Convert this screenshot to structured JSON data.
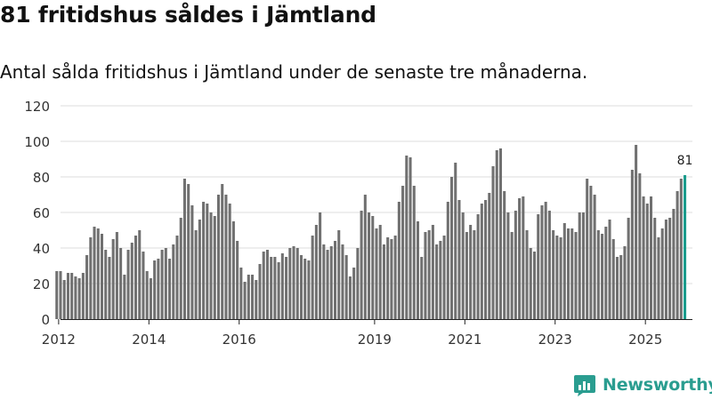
{
  "title": "81 fritidshus såldes i Jämtland",
  "subtitle": "Antal sålda fritidshus i Jämtland under de senaste tre månaderna.",
  "brand": {
    "name": "Newsworthy",
    "icon": "newsworthy-logo-icon"
  },
  "colors": {
    "bar": "#707070",
    "highlight": "#1a9c8c",
    "grid": "#dddddd",
    "axis": "#222222",
    "brand": "#2a9d90"
  },
  "chart_data": {
    "type": "bar",
    "title": "81 fritidshus såldes i Jämtland",
    "xlabel": "",
    "ylabel": "",
    "ylim": [
      0,
      120
    ],
    "yticks": [
      0,
      20,
      40,
      60,
      80,
      100,
      120
    ],
    "grid": true,
    "x_start": "2012-01",
    "x_end": "2026-01",
    "xticks": [
      {
        "label": "2012",
        "date": "2012-01"
      },
      {
        "label": "2014",
        "date": "2014-01"
      },
      {
        "label": "2016",
        "date": "2016-01"
      },
      {
        "label": "2019",
        "date": "2019-01"
      },
      {
        "label": "2021",
        "date": "2021-01"
      },
      {
        "label": "2023",
        "date": "2023-01"
      },
      {
        "label": "2025",
        "date": "2025-01"
      }
    ],
    "highlight_label": "81",
    "series": [
      {
        "name": "Antal sålda fritidshus",
        "start": "2011-12",
        "values": [
          27,
          27,
          22,
          26,
          26,
          24,
          23,
          26,
          36,
          46,
          52,
          51,
          48,
          39,
          35,
          45,
          49,
          40,
          25,
          39,
          43,
          47,
          50,
          38,
          27,
          23,
          33,
          34,
          39,
          40,
          34,
          42,
          47,
          57,
          79,
          76,
          64,
          50,
          56,
          66,
          65,
          60,
          58,
          70,
          76,
          70,
          65,
          55,
          44,
          29,
          21,
          25,
          25,
          22,
          31,
          38,
          39,
          35,
          35,
          32,
          37,
          35,
          40,
          41,
          40,
          36,
          34,
          33,
          47,
          53,
          60,
          42,
          39,
          41,
          44,
          50,
          42,
          36,
          24,
          29,
          40,
          61,
          70,
          60,
          58,
          51,
          53,
          42,
          46,
          45,
          47,
          66,
          75,
          92,
          91,
          75,
          55,
          35,
          49,
          50,
          53,
          42,
          44,
          47,
          66,
          80,
          88,
          67,
          60,
          49,
          53,
          50,
          59,
          65,
          67,
          71,
          86,
          95,
          96,
          72,
          60,
          49,
          61,
          68,
          69,
          50,
          40,
          38,
          59,
          64,
          66,
          61,
          50,
          47,
          46,
          54,
          51,
          51,
          49,
          60,
          60,
          79,
          75,
          70,
          50,
          48,
          52,
          56,
          45,
          35,
          36,
          41,
          57,
          84,
          98,
          82,
          69,
          65,
          69,
          57,
          46,
          51,
          56,
          57,
          62,
          72,
          79,
          81
        ]
      }
    ]
  }
}
